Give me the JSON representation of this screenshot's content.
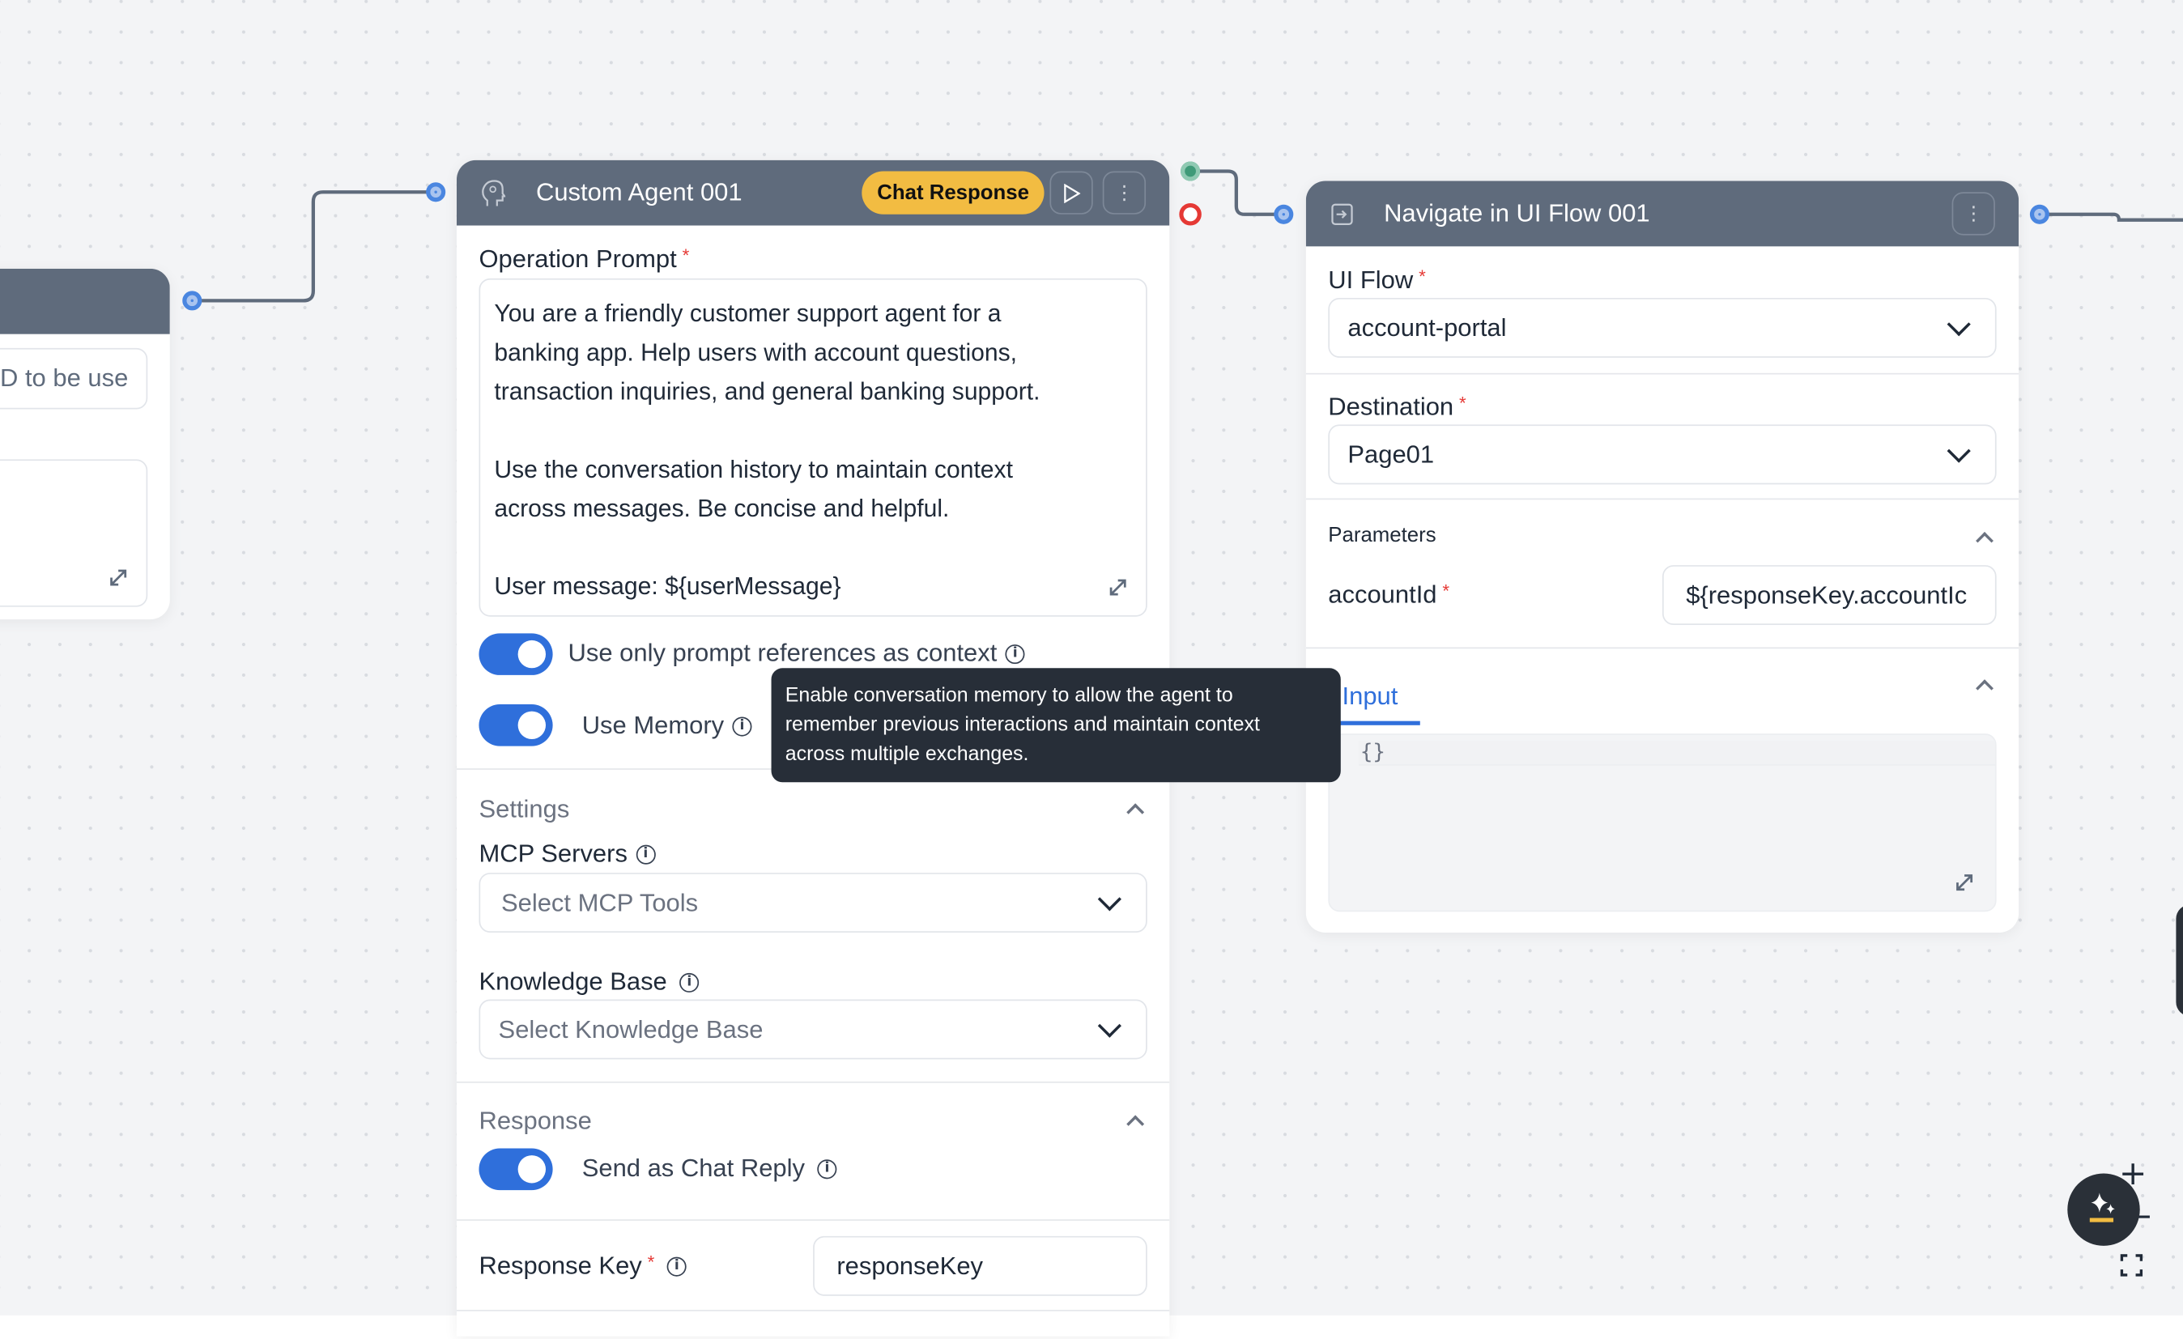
{
  "left_node": {
    "input_value": "D to be use"
  },
  "agent_node": {
    "title": "Custom Agent 001",
    "badge": "Chat Response",
    "badge_color": "#f2bc42",
    "header_color": "#5f6b7c",
    "prompt_label": "Operation Prompt",
    "required_mark": "*",
    "prompt_lines": [
      "You are a friendly customer support agent for a",
      "banking app. Help users with account questions,",
      "transaction inquiries, and general banking support.",
      "",
      "Use the conversation history to maintain context",
      "across messages. Be concise and helpful.",
      "",
      "User message: ${userMessage}"
    ],
    "toggle_prompt_refs": {
      "label": "Use only prompt references as context",
      "on": true
    },
    "toggle_memory": {
      "label": "Use Memory",
      "on": true
    },
    "settings_label": "Settings",
    "mcp_label": "MCP Servers",
    "mcp_placeholder": "Select MCP Tools",
    "kb_label": "Knowledge Base",
    "kb_placeholder": "Select Knowledge Base",
    "response_label": "Response",
    "toggle_chat_reply": {
      "label": "Send as Chat Reply",
      "on": true
    },
    "response_key_label": "Response Key",
    "response_key_value": "responseKey"
  },
  "tooltip": {
    "lines": [
      "Enable conversation memory to allow the agent to",
      "remember previous interactions and maintain context",
      "across multiple exchanges."
    ]
  },
  "nav_node": {
    "title": "Navigate in UI Flow 001",
    "ui_flow_label": "UI Flow",
    "ui_flow_value": "account-portal",
    "destination_label": "Destination",
    "destination_value": "Page01",
    "parameters_label": "Parameters",
    "param_name": "accountId",
    "param_value": "${responseKey.accountIc",
    "input_tab": "Input",
    "code_value": "{}"
  },
  "colors": {
    "accent": "#2f6fdb",
    "port": "#4a86e0",
    "success_port": "#3f9a78",
    "error_port": "#e53935"
  },
  "controls": {
    "zoom_in": "+",
    "zoom_out": "−"
  }
}
